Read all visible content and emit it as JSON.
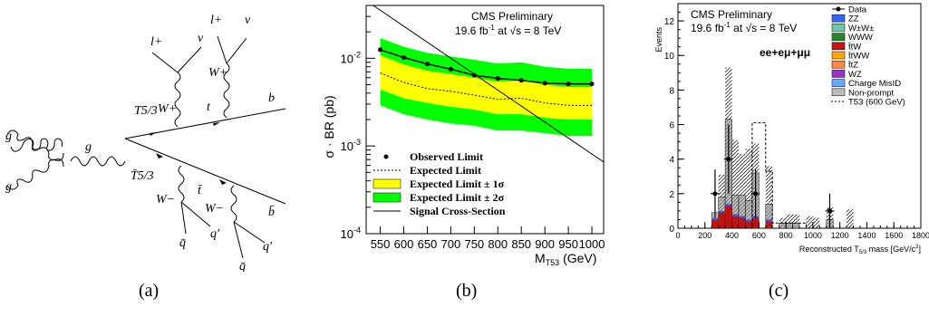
{
  "captions": [
    "(a)",
    "(b)",
    "(c)"
  ],
  "feynman": {
    "labels": [
      "g",
      "g",
      "g",
      "T5/3",
      "T̄5/3",
      "W+",
      "t",
      "W+",
      "b",
      "l+",
      "ν",
      "l+",
      "ν",
      "W−",
      "t̄",
      "W−",
      "b̄",
      "q̄",
      "q′",
      "q̄",
      "q′"
    ]
  },
  "panel_b": {
    "header_line1": "CMS Preliminary",
    "header_lumi": "19.6 fb",
    "header_lumi_sup": "-1",
    "header_energy": "at √s = 8 TeV",
    "ylabel": "σ · BR (pb)",
    "xlabel": "M",
    "xlabel_sub": "T53",
    "xlabel_unit": "(GeV)",
    "xticks": [
      "550",
      "600",
      "650",
      "700",
      "750",
      "800",
      "850",
      "900",
      "950",
      "1000"
    ],
    "yticks": [
      "10",
      "10",
      "10"
    ],
    "ytick_exps": [
      "-2",
      "-3",
      "-4"
    ],
    "legend": [
      "Observed Limit",
      "Expected Limit",
      "Expected Limit ± 1σ",
      "Expected Limit ± 2σ",
      "Signal Cross-Section"
    ],
    "colors": {
      "band1": "#ffff00",
      "band2": "#00ff00"
    }
  },
  "chart_data": [
    {
      "type": "line",
      "xlabel": "M_T53 (GeV)",
      "ylabel": "σ · BR (pb)",
      "log_y": true,
      "xlim": [
        520,
        1025
      ],
      "ylim": [
        0.0001,
        0.04
      ],
      "x": [
        550,
        600,
        650,
        700,
        750,
        800,
        850,
        900,
        950,
        1000
      ],
      "series": [
        {
          "name": "Observed Limit",
          "values": [
            0.0125,
            0.0102,
            0.0086,
            0.0075,
            0.0064,
            0.0059,
            0.0056,
            0.0052,
            0.0051,
            0.0051
          ]
        },
        {
          "name": "Expected Limit",
          "values": [
            0.0068,
            0.0053,
            0.0045,
            0.0042,
            0.0038,
            0.0034,
            0.0035,
            0.0031,
            0.0029,
            0.0029
          ]
        },
        {
          "name": "Expected Limit ± 1σ",
          "values_low": [
            0.0044,
            0.0035,
            0.0031,
            0.0028,
            0.0026,
            0.0023,
            0.0023,
            0.0021,
            0.002,
            0.002
          ],
          "values_high": [
            0.0108,
            0.0085,
            0.0072,
            0.0066,
            0.006,
            0.0054,
            0.0056,
            0.005,
            0.0047,
            0.0047
          ]
        },
        {
          "name": "Expected Limit ± 2σ",
          "values_low": [
            0.0029,
            0.0023,
            0.002,
            0.0018,
            0.0017,
            0.0015,
            0.0015,
            0.0014,
            0.0013,
            0.0013
          ],
          "values_high": [
            0.017,
            0.0135,
            0.0115,
            0.0105,
            0.0096,
            0.0087,
            0.009,
            0.008,
            0.0076,
            0.0076
          ]
        },
        {
          "name": "Signal Cross-Section",
          "values": [
            0.045,
            0.026,
            0.016,
            0.01,
            0.0063,
            0.004,
            0.0026,
            0.0018,
            0.0012,
            0.00082
          ]
        }
      ]
    },
    {
      "type": "bar",
      "xlabel": "Reconstructed T5/3 mass [GeV/c²]",
      "ylabel": "Events",
      "xlim": [
        0,
        1800
      ],
      "ylim": [
        0,
        13
      ],
      "xticks": [
        0,
        200,
        400,
        600,
        800,
        1000,
        1200,
        1400,
        1600,
        1800
      ],
      "yticks": [
        0,
        2,
        4,
        6,
        8,
        10,
        12
      ],
      "bins_x": [
        200,
        250,
        300,
        350,
        400,
        450,
        500,
        550,
        600,
        650,
        700,
        750,
        800,
        850,
        900,
        950,
        1000,
        1050,
        1100,
        1150,
        1200,
        1250,
        1300
      ],
      "stack_total": [
        0,
        0.9,
        1.8,
        6.3,
        1.9,
        1.9,
        1.6,
        3.2,
        0,
        1.4,
        0,
        0.3,
        0.3,
        0.3,
        0,
        0,
        0,
        0,
        0.5,
        0,
        0,
        0,
        0
      ],
      "uncertainty_high": [
        0,
        0,
        3.1,
        9.3,
        5.1,
        4.3,
        4.6,
        4.9,
        0,
        3.6,
        0,
        0.6,
        0.8,
        0.8,
        0,
        0.7,
        0.6,
        0,
        1.2,
        0,
        0,
        1.1,
        0
      ],
      "prompt_stack": [
        0,
        0.6,
        1.0,
        1.4,
        0.8,
        0.7,
        0.5,
        0.7,
        0,
        0.5,
        0,
        0,
        0,
        0,
        0,
        0,
        0,
        0,
        0,
        0,
        0,
        0,
        0
      ],
      "data_points": [
        {
          "x": 275,
          "y": 2,
          "yerr": 1.4
        },
        {
          "x": 375,
          "y": 4,
          "yerr": 2
        },
        {
          "x": 575,
          "y": 2,
          "yerr": 1.4
        },
        {
          "x": 1125,
          "y": 1,
          "yerr": 1
        }
      ],
      "signal_T53_600": [
        0,
        0,
        0,
        0,
        0,
        0,
        0,
        6.1,
        6.1,
        3.3,
        0.3,
        0.3,
        0.3,
        0.3,
        0.3,
        0,
        0,
        0,
        0,
        0,
        0,
        0,
        0
      ]
    }
  ],
  "panel_c": {
    "header_line1": "CMS Preliminary",
    "header_lumi": "19.6 fb",
    "header_lumi_sup": "-1",
    "header_energy": "at √s = 8 TeV",
    "channel": "ee+eμ+μμ",
    "ylabel": "Events",
    "xlabel": "Reconstructed T",
    "xlabel_sub": "5/3",
    "xlabel_unit": "mass [GeV/c",
    "xlabel_end": "]",
    "xticks": [
      "0",
      "200",
      "400",
      "600",
      "800",
      "1000",
      "1200",
      "1400",
      "1600",
      "1800"
    ],
    "yticks": [
      "0",
      "2",
      "4",
      "6",
      "8",
      "10",
      "12"
    ],
    "legend": [
      {
        "label": "Data",
        "color": "#000000",
        "kind": "point"
      },
      {
        "label": "ZZ",
        "color": "#3366ff",
        "kind": "box"
      },
      {
        "label": "W±W±",
        "color": "#66ccaa",
        "kind": "box"
      },
      {
        "label": "WWW",
        "color": "#228822",
        "kind": "box"
      },
      {
        "label": "t̄tW",
        "color": "#cc1111",
        "kind": "box"
      },
      {
        "label": "t̄tWW",
        "color": "#ffaa00",
        "kind": "box"
      },
      {
        "label": "t̄tZ",
        "color": "#ff8844",
        "kind": "box"
      },
      {
        "label": "WZ",
        "color": "#9933cc",
        "kind": "box"
      },
      {
        "label": "Charge MisID",
        "color": "#66aaff",
        "kind": "box"
      },
      {
        "label": "Non-prompt",
        "color": "#bbbbbb",
        "kind": "box"
      },
      {
        "label": "T53 (600 GeV)",
        "color": "#000000",
        "kind": "dash"
      }
    ]
  }
}
